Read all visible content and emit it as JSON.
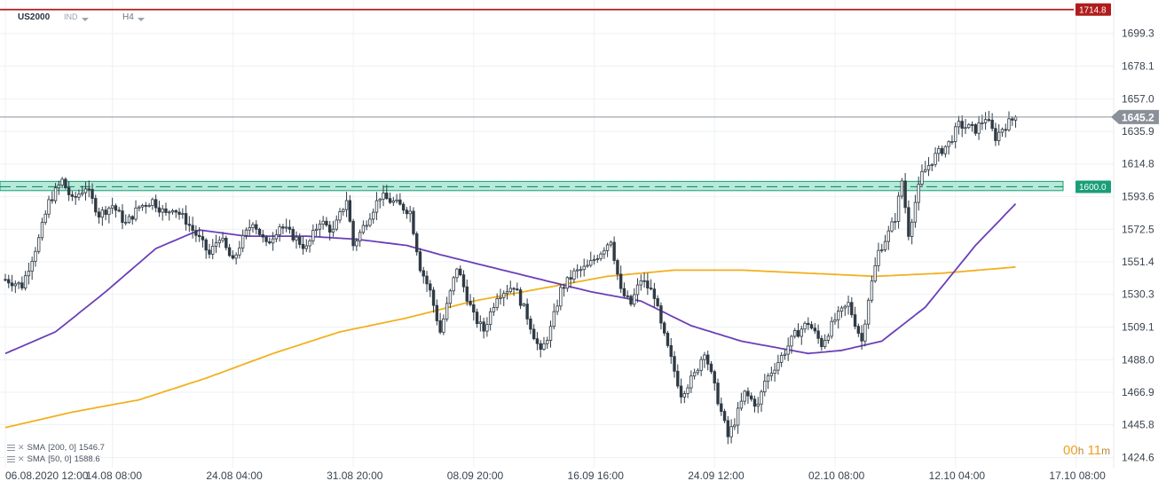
{
  "header": {
    "symbol": "US2000",
    "instrument_type": "IND",
    "timeframe": "H4"
  },
  "timer": {
    "hours": "00",
    "hours_unit": "h",
    "minutes": "11",
    "minutes_unit": "m"
  },
  "legend": [
    {
      "label": "SMA",
      "params": "[200,  0]",
      "value": "1546.7"
    },
    {
      "label": "SMA",
      "params": "[50,  0]",
      "value": "1588.6"
    }
  ],
  "chart_data": {
    "type": "candlestick",
    "title": "",
    "xlabel": "",
    "ylabel": "",
    "ylim": [
      1418,
      1721
    ],
    "y_ticks": [
      1699.3,
      1678.1,
      1657.0,
      1635.9,
      1614.8,
      1593.6,
      1572.5,
      1551.4,
      1530.3,
      1509.1,
      1488.0,
      1466.9,
      1445.8,
      1424.6
    ],
    "x_tick_labels": [
      "06.08.2020  12:00",
      "14.08  08:00",
      "24.08  04:00",
      "31.08  20:00",
      "08.09  20:00",
      "16.09  16:00",
      "24.09  12:00",
      "02.10  08:00",
      "12.10  04:00",
      "17.10  08:00"
    ],
    "x_tick_bars": [
      0,
      32,
      68,
      104,
      140,
      176,
      212,
      248,
      284,
      320
    ],
    "bar_count": 303,
    "last_price": 1645.2,
    "price_labels": [
      {
        "value": 1714.8,
        "label": "1714.8",
        "color": "#b01c1c"
      },
      {
        "value": 1600.0,
        "label": "1600.0",
        "color": "#1a9e78"
      },
      {
        "value": 1645.2,
        "label": "1645.2",
        "color": "#8a9099"
      }
    ],
    "zone": {
      "low": 1597.5,
      "high": 1603.5
    },
    "anchors": [
      [
        0,
        1540
      ],
      [
        5,
        1536
      ],
      [
        10,
        1566
      ],
      [
        13,
        1590
      ],
      [
        17,
        1604
      ],
      [
        20,
        1591
      ],
      [
        24,
        1600
      ],
      [
        28,
        1582
      ],
      [
        32,
        1588
      ],
      [
        36,
        1576
      ],
      [
        40,
        1587
      ],
      [
        44,
        1591
      ],
      [
        48,
        1582
      ],
      [
        50,
        1587
      ],
      [
        54,
        1578
      ],
      [
        58,
        1566
      ],
      [
        61,
        1556
      ],
      [
        64,
        1568
      ],
      [
        68,
        1551
      ],
      [
        70,
        1562
      ],
      [
        74,
        1578
      ],
      [
        78,
        1562
      ],
      [
        82,
        1575
      ],
      [
        86,
        1568
      ],
      [
        90,
        1560
      ],
      [
        94,
        1578
      ],
      [
        98,
        1571
      ],
      [
        102,
        1592
      ],
      [
        104,
        1562
      ],
      [
        108,
        1578
      ],
      [
        112,
        1594
      ],
      [
        116,
        1590
      ],
      [
        121,
        1584
      ],
      [
        124,
        1548
      ],
      [
        127,
        1532
      ],
      [
        130,
        1506
      ],
      [
        135,
        1548
      ],
      [
        140,
        1516
      ],
      [
        143,
        1507
      ],
      [
        147,
        1530
      ],
      [
        152,
        1536
      ],
      [
        156,
        1516
      ],
      [
        160,
        1492
      ],
      [
        163,
        1508
      ],
      [
        166,
        1533
      ],
      [
        170,
        1544
      ],
      [
        174,
        1548
      ],
      [
        178,
        1558
      ],
      [
        181,
        1566
      ],
      [
        184,
        1532
      ],
      [
        187,
        1524
      ],
      [
        190,
        1540
      ],
      [
        194,
        1530
      ],
      [
        196,
        1510
      ],
      [
        199,
        1488
      ],
      [
        202,
        1466
      ],
      [
        206,
        1478
      ],
      [
        209,
        1494
      ],
      [
        213,
        1462
      ],
      [
        216,
        1438
      ],
      [
        218,
        1448
      ],
      [
        221,
        1466
      ],
      [
        225,
        1458
      ],
      [
        227,
        1474
      ],
      [
        232,
        1490
      ],
      [
        236,
        1504
      ],
      [
        240,
        1512
      ],
      [
        244,
        1498
      ],
      [
        248,
        1514
      ],
      [
        252,
        1524
      ],
      [
        256,
        1500
      ],
      [
        258,
        1528
      ],
      [
        261,
        1558
      ],
      [
        264,
        1570
      ],
      [
        266,
        1580
      ],
      [
        268,
        1604
      ],
      [
        270,
        1570
      ],
      [
        272,
        1590
      ],
      [
        274,
        1608
      ],
      [
        278,
        1620
      ],
      [
        282,
        1628
      ],
      [
        285,
        1640
      ],
      [
        290,
        1637
      ],
      [
        293,
        1645
      ],
      [
        296,
        1632
      ],
      [
        298,
        1638
      ],
      [
        302,
        1645.2
      ]
    ],
    "series": [
      {
        "name": "SMA [200, 0]",
        "color": "#f2b01e",
        "value": 1546.7,
        "points": [
          [
            0,
            1444
          ],
          [
            20,
            1454
          ],
          [
            40,
            1462
          ],
          [
            60,
            1476
          ],
          [
            80,
            1492
          ],
          [
            100,
            1506
          ],
          [
            120,
            1515
          ],
          [
            140,
            1526
          ],
          [
            160,
            1534
          ],
          [
            180,
            1542
          ],
          [
            200,
            1546
          ],
          [
            220,
            1546
          ],
          [
            240,
            1544
          ],
          [
            260,
            1542
          ],
          [
            280,
            1544
          ],
          [
            302,
            1548
          ]
        ]
      },
      {
        "name": "SMA [50, 0]",
        "color": "#6a3fb8",
        "value": 1588.6,
        "points": [
          [
            0,
            1492
          ],
          [
            15,
            1506
          ],
          [
            30,
            1532
          ],
          [
            45,
            1560
          ],
          [
            58,
            1572
          ],
          [
            72,
            1568
          ],
          [
            90,
            1568
          ],
          [
            105,
            1566
          ],
          [
            120,
            1562
          ],
          [
            130,
            1556
          ],
          [
            145,
            1548
          ],
          [
            160,
            1540
          ],
          [
            175,
            1532
          ],
          [
            190,
            1526
          ],
          [
            205,
            1510
          ],
          [
            220,
            1500
          ],
          [
            240,
            1492
          ],
          [
            250,
            1494
          ],
          [
            262,
            1500
          ],
          [
            275,
            1522
          ],
          [
            290,
            1562
          ],
          [
            302,
            1589
          ]
        ]
      }
    ]
  }
}
